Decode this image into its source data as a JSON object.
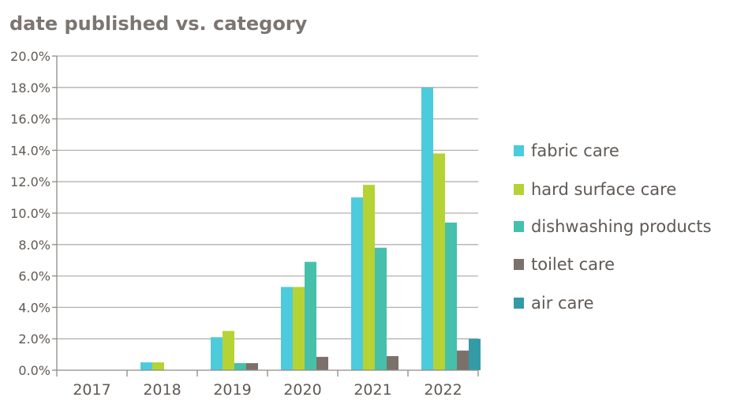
{
  "chart_data": {
    "type": "bar",
    "title": "date published vs. category",
    "xlabel": "",
    "ylabel": "",
    "categories": [
      "2017",
      "2018",
      "2019",
      "2020",
      "2021",
      "2022"
    ],
    "ylim": [
      0,
      20
    ],
    "yticks": [
      "0.0%",
      "2.0%",
      "4.0%",
      "6.0%",
      "8.0%",
      "10.0%",
      "12.0%",
      "14.0%",
      "16.0%",
      "18.0%",
      "20.0%"
    ],
    "grid": true,
    "legend": "right",
    "series": [
      {
        "name": "fabric care",
        "color": "#4ccbdc",
        "values": [
          0,
          0.5,
          2.1,
          5.3,
          11.0,
          18.0
        ]
      },
      {
        "name": "hard surface care",
        "color": "#b5d334",
        "values": [
          0,
          0.5,
          2.5,
          5.3,
          11.8,
          13.8
        ]
      },
      {
        "name": "dishwashing products",
        "color": "#46c0aa",
        "values": [
          0,
          0,
          0.45,
          6.9,
          7.8,
          9.4
        ]
      },
      {
        "name": "toilet care",
        "color": "#7b716a",
        "values": [
          0,
          0,
          0.45,
          0.85,
          0.9,
          1.25
        ]
      },
      {
        "name": "air care",
        "color": "#339ba5",
        "values": [
          0,
          0,
          0,
          0,
          0,
          2.0
        ]
      }
    ]
  }
}
